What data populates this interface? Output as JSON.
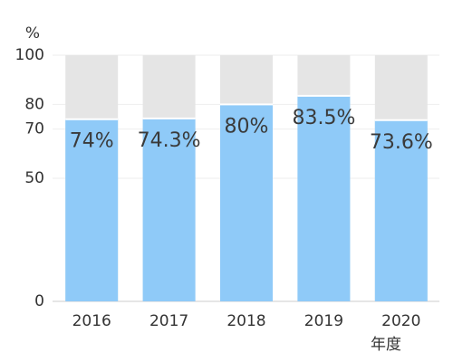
{
  "chart_data": {
    "type": "bar",
    "y_unit": "%",
    "x_label": "年度",
    "categories": [
      "2016",
      "2017",
      "2018",
      "2019",
      "2020"
    ],
    "values": [
      74,
      74.3,
      80,
      83.5,
      73.6
    ],
    "value_labels": [
      "74%",
      "74.3%",
      "80%",
      "83.5%",
      "73.6%"
    ],
    "color": "#8fcaf8",
    "ylim": [
      0,
      100
    ],
    "yticks": [
      0,
      50,
      70,
      80,
      100
    ],
    "grid": true
  }
}
